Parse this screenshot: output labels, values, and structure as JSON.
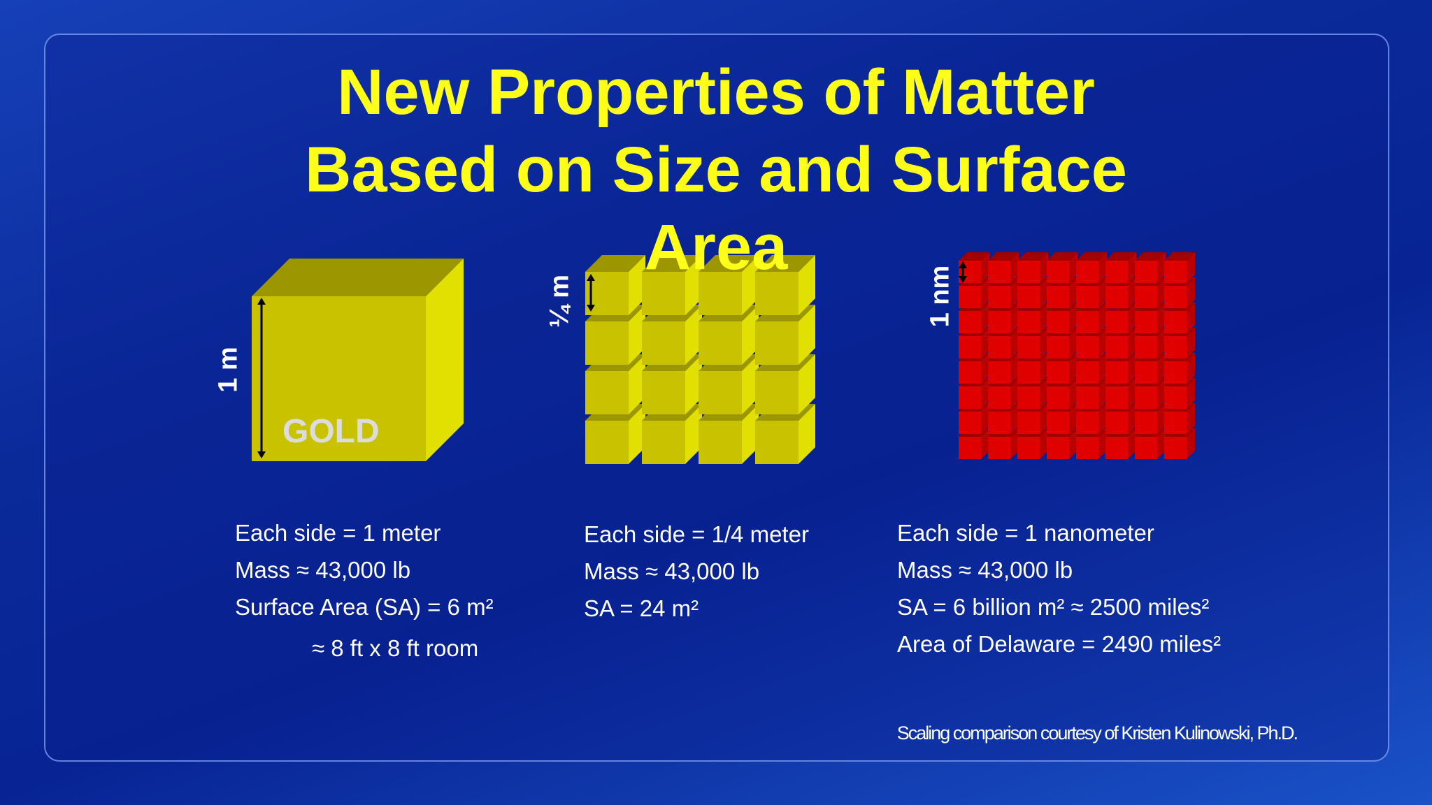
{
  "title_lines": [
    "New Properties of Matter",
    "Based on Size and Surface",
    "Area"
  ],
  "columns": [
    {
      "label": "1 m",
      "cube_text": "GOLD",
      "lines": [
        "Each side = 1 meter",
        "Mass ≈ 43,000 lb",
        "Surface Area (SA) = 6 m²",
        "≈ 8 ft x 8 ft room"
      ]
    },
    {
      "label": "¼ m",
      "lines": [
        "Each side = 1/4 meter",
        "Mass ≈ 43,000 lb",
        "SA = 24 m²"
      ]
    },
    {
      "label": "1 nm",
      "lines": [
        "Each side = 1 nanometer",
        "Mass ≈ 43,000 lb",
        "SA = 6 billion m² ≈ 2500 miles²",
        "Area of Delaware = 2490 miles²"
      ]
    }
  ],
  "credit": "Scaling comparison courtesy of Kristen Kulinowski,  Ph.D."
}
